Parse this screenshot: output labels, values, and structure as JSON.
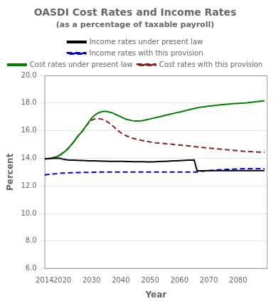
{
  "chart_data": {
    "type": "line",
    "title": "OASDI Cost Rates and Income Rates",
    "subtitle": "(as a percentage of taxable payroll)",
    "x_label": "Year",
    "y_label": "Percent",
    "x": [
      2014,
      2015,
      2016,
      2017,
      2018,
      2019,
      2020,
      2021,
      2022,
      2023,
      2024,
      2025,
      2026,
      2027,
      2028,
      2029,
      2030,
      2031,
      2032,
      2033,
      2034,
      2035,
      2036,
      2037,
      2038,
      2039,
      2040,
      2041,
      2042,
      2043,
      2044,
      2045,
      2046,
      2047,
      2048,
      2049,
      2050,
      2051,
      2052,
      2053,
      2054,
      2055,
      2056,
      2057,
      2058,
      2059,
      2060,
      2061,
      2062,
      2063,
      2064,
      2065,
      2066,
      2067,
      2068,
      2069,
      2070,
      2071,
      2072,
      2073,
      2074,
      2075,
      2076,
      2077,
      2078,
      2079,
      2080,
      2081,
      2082,
      2083,
      2084,
      2085,
      2086,
      2087,
      2088,
      2089
    ],
    "series": [
      {
        "name": "Income rates under present law",
        "color": "#000000",
        "line_style": "solid",
        "values": [
          13.96,
          13.97,
          13.98,
          13.99,
          14.0,
          14.01,
          13.95,
          13.9,
          13.88,
          13.87,
          13.86,
          13.85,
          13.84,
          13.84,
          13.83,
          13.82,
          13.82,
          13.81,
          13.8,
          13.8,
          13.79,
          13.79,
          13.78,
          13.78,
          13.78,
          13.77,
          13.77,
          13.77,
          13.76,
          13.76,
          13.75,
          13.75,
          13.75,
          13.75,
          13.75,
          13.74,
          13.74,
          13.74,
          13.75,
          13.76,
          13.77,
          13.78,
          13.79,
          13.8,
          13.81,
          13.82,
          13.83,
          13.84,
          13.85,
          13.86,
          13.87,
          13.88,
          13.09,
          13.09,
          13.09,
          13.09,
          13.1,
          13.1,
          13.1,
          13.1,
          13.1,
          13.1,
          13.1,
          13.1,
          13.1,
          13.1,
          13.1,
          13.1,
          13.1,
          13.1,
          13.1,
          13.1,
          13.1,
          13.1,
          13.1,
          13.1
        ]
      },
      {
        "name": "Income rates with this provision",
        "color": "#0000cc",
        "line_style": "dashed",
        "values": [
          12.8,
          12.82,
          12.84,
          12.86,
          12.88,
          12.9,
          12.92,
          12.93,
          12.94,
          12.95,
          12.96,
          12.97,
          12.97,
          12.98,
          12.98,
          12.98,
          12.98,
          12.99,
          12.99,
          13.0,
          13.0,
          13.0,
          13.0,
          13.0,
          13.0,
          13.0,
          13.0,
          13.0,
          13.0,
          13.0,
          13.0,
          13.0,
          13.0,
          13.0,
          13.0,
          13.0,
          13.0,
          13.0,
          13.0,
          13.0,
          13.0,
          13.0,
          13.0,
          13.0,
          13.0,
          13.0,
          13.0,
          13.0,
          13.0,
          13.0,
          13.0,
          13.0,
          13.0,
          13.05,
          13.07,
          13.08,
          13.1,
          13.12,
          13.14,
          13.16,
          13.17,
          13.18,
          13.19,
          13.2,
          13.21,
          13.22,
          13.23,
          13.24,
          13.25,
          13.25,
          13.25,
          13.25,
          13.25,
          13.25,
          13.25,
          13.25
        ]
      },
      {
        "name": "Cost rates under present law",
        "color": "#008000",
        "line_style": "solid",
        "values": [
          13.95,
          13.97,
          14.0,
          14.05,
          14.1,
          14.2,
          14.35,
          14.5,
          14.7,
          14.95,
          15.2,
          15.5,
          15.75,
          16.0,
          16.3,
          16.6,
          16.9,
          17.1,
          17.25,
          17.35,
          17.4,
          17.4,
          17.35,
          17.3,
          17.2,
          17.1,
          17.0,
          16.9,
          16.82,
          16.76,
          16.72,
          16.7,
          16.7,
          16.72,
          16.75,
          16.8,
          16.85,
          16.9,
          16.95,
          17.0,
          17.05,
          17.1,
          17.15,
          17.2,
          17.25,
          17.3,
          17.35,
          17.4,
          17.45,
          17.5,
          17.55,
          17.6,
          17.65,
          17.7,
          17.72,
          17.75,
          17.78,
          17.8,
          17.82,
          17.85,
          17.87,
          17.89,
          17.91,
          17.93,
          17.95,
          17.97,
          17.98,
          17.99,
          18.0,
          18.02,
          18.05,
          18.07,
          18.1,
          18.12,
          18.15,
          18.17
        ]
      },
      {
        "name": "Cost rates with this provision",
        "color": "#8b2222",
        "line_style": "dashed",
        "values": [
          13.95,
          13.97,
          14.0,
          14.05,
          14.1,
          14.2,
          14.35,
          14.5,
          14.7,
          14.95,
          15.2,
          15.5,
          15.75,
          16.0,
          16.3,
          16.55,
          16.75,
          16.85,
          16.88,
          16.85,
          16.8,
          16.7,
          16.55,
          16.4,
          16.2,
          16.0,
          15.85,
          15.72,
          15.62,
          15.52,
          15.45,
          15.4,
          15.35,
          15.3,
          15.26,
          15.22,
          15.18,
          15.15,
          15.12,
          15.1,
          15.08,
          15.06,
          15.04,
          15.02,
          15.0,
          14.98,
          14.96,
          14.94,
          14.92,
          14.9,
          14.88,
          14.85,
          14.82,
          14.8,
          14.78,
          14.76,
          14.74,
          14.72,
          14.7,
          14.68,
          14.66,
          14.64,
          14.62,
          14.6,
          14.58,
          14.56,
          14.54,
          14.52,
          14.5,
          14.49,
          14.48,
          14.47,
          14.46,
          14.45,
          14.44,
          14.43
        ]
      }
    ],
    "xlim": [
      2014,
      2090
    ],
    "xticks": [
      2014,
      2020,
      2030,
      2040,
      2050,
      2060,
      2070,
      2080
    ],
    "ylim": [
      6.0,
      20.0
    ],
    "yticks": [
      {
        "value": 6.0,
        "label": "6.0"
      },
      {
        "value": 8.0,
        "label": "8.0"
      },
      {
        "value": 10.0,
        "label": "10.0"
      },
      {
        "value": 12.0,
        "label": "12.0"
      },
      {
        "value": 14.0,
        "label": "14.0"
      },
      {
        "value": 16.0,
        "label": "16.0"
      },
      {
        "value": 18.0,
        "label": "18.0"
      },
      {
        "value": 20.0,
        "label": "20.0"
      }
    ],
    "grid": "y",
    "legend": "top"
  }
}
